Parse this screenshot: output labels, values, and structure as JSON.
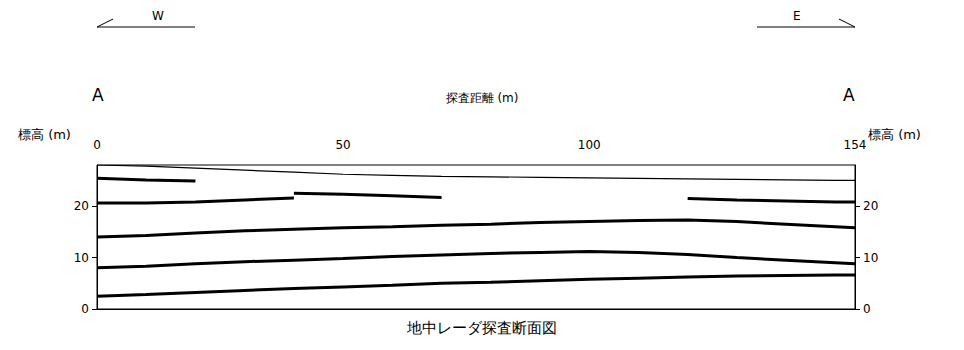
{
  "chart_data": {
    "type": "line",
    "title": "地中レーダ探査断面図",
    "x_label": "探査距離 (m)",
    "y_label": "標高 (m)",
    "y2_label": "標高 (m)",
    "annotations": {
      "west": "W",
      "east": "E",
      "start": "A",
      "end": "A"
    },
    "x": [
      0,
      10,
      20,
      30,
      40,
      50,
      60,
      70,
      80,
      90,
      100,
      110,
      120,
      130,
      140,
      150,
      154
    ],
    "series": [
      {
        "color": "#000000",
        "line_style": "solid",
        "marker": "none",
        "values": [
          28.0,
          27.8,
          27.4,
          27.0,
          26.6,
          26.2,
          26.0,
          25.8,
          25.7,
          25.6,
          25.5,
          25.4,
          25.3,
          25.2,
          25.1,
          25.0,
          25.0
        ]
      },
      {
        "color": "#000000",
        "line_style": "solid",
        "marker": "none",
        "values": [
          25.4,
          25.1,
          24.9,
          null,
          null,
          null,
          null,
          null,
          null,
          null,
          null,
          null,
          null,
          null,
          null,
          null,
          null
        ]
      },
      {
        "color": "#000000",
        "line_style": "solid",
        "marker": "none",
        "values": [
          20.6,
          20.6,
          20.8,
          21.2,
          21.6,
          null,
          null,
          null,
          null,
          null,
          null,
          null,
          null,
          null,
          null,
          null,
          null
        ]
      },
      {
        "color": "#000000",
        "line_style": "solid",
        "marker": "none",
        "values": [
          null,
          null,
          null,
          null,
          22.5,
          22.3,
          22.0,
          21.7,
          null,
          null,
          null,
          null,
          null,
          null,
          null,
          null,
          null
        ]
      },
      {
        "color": "#000000",
        "line_style": "solid",
        "marker": "none",
        "values": [
          null,
          null,
          null,
          null,
          null,
          null,
          null,
          null,
          null,
          null,
          null,
          null,
          21.5,
          21.2,
          21.0,
          20.8,
          20.8
        ]
      },
      {
        "color": "#000000",
        "line_style": "solid",
        "marker": "none",
        "values": [
          14.0,
          14.3,
          14.8,
          15.2,
          15.5,
          15.8,
          16.0,
          16.3,
          16.5,
          16.8,
          17.0,
          17.2,
          17.3,
          17.0,
          16.5,
          16.0,
          15.8
        ]
      },
      {
        "color": "#000000",
        "line_style": "solid",
        "marker": "none",
        "values": [
          8.0,
          8.3,
          8.8,
          9.2,
          9.5,
          9.8,
          10.2,
          10.5,
          10.8,
          11.0,
          11.2,
          11.0,
          10.6,
          10.0,
          9.5,
          9.0,
          8.8
        ]
      },
      {
        "color": "#000000",
        "line_style": "solid",
        "marker": "none",
        "values": [
          2.5,
          2.8,
          3.2,
          3.6,
          4.0,
          4.3,
          4.6,
          5.0,
          5.2,
          5.5,
          5.8,
          6.0,
          6.2,
          6.4,
          6.5,
          6.6,
          6.6
        ]
      }
    ],
    "xlim": [
      0,
      154
    ],
    "xticks": [
      0,
      50,
      100,
      154
    ],
    "ylim": [
      0,
      28
    ],
    "yticks": [
      0,
      10,
      20
    ],
    "y2lim": [
      0,
      28
    ],
    "y2ticks": [
      0,
      10,
      20
    ],
    "grid": false
  }
}
